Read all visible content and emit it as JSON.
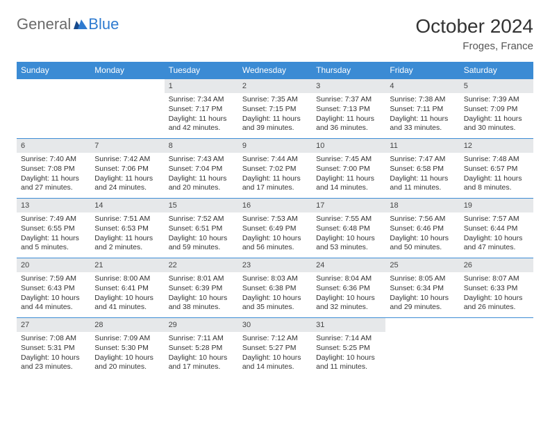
{
  "logo": {
    "text1": "General",
    "text2": "Blue"
  },
  "header": {
    "month": "October 2024",
    "location": "Froges, France"
  },
  "colors": {
    "header_row_bg": "#3b8bd4",
    "header_row_fg": "#ffffff",
    "daynum_bg": "#e6e8ea",
    "row_divider": "#3b8bd4",
    "logo_accent": "#2f7bd0"
  },
  "layout": {
    "cols": 7,
    "rows": 5,
    "first_weekday_col": 2
  },
  "weekdays": [
    "Sunday",
    "Monday",
    "Tuesday",
    "Wednesday",
    "Thursday",
    "Friday",
    "Saturday"
  ],
  "days": [
    {
      "n": 1,
      "sunrise": "7:34 AM",
      "sunset": "7:17 PM",
      "daylight": "11 hours and 42 minutes."
    },
    {
      "n": 2,
      "sunrise": "7:35 AM",
      "sunset": "7:15 PM",
      "daylight": "11 hours and 39 minutes."
    },
    {
      "n": 3,
      "sunrise": "7:37 AM",
      "sunset": "7:13 PM",
      "daylight": "11 hours and 36 minutes."
    },
    {
      "n": 4,
      "sunrise": "7:38 AM",
      "sunset": "7:11 PM",
      "daylight": "11 hours and 33 minutes."
    },
    {
      "n": 5,
      "sunrise": "7:39 AM",
      "sunset": "7:09 PM",
      "daylight": "11 hours and 30 minutes."
    },
    {
      "n": 6,
      "sunrise": "7:40 AM",
      "sunset": "7:08 PM",
      "daylight": "11 hours and 27 minutes."
    },
    {
      "n": 7,
      "sunrise": "7:42 AM",
      "sunset": "7:06 PM",
      "daylight": "11 hours and 24 minutes."
    },
    {
      "n": 8,
      "sunrise": "7:43 AM",
      "sunset": "7:04 PM",
      "daylight": "11 hours and 20 minutes."
    },
    {
      "n": 9,
      "sunrise": "7:44 AM",
      "sunset": "7:02 PM",
      "daylight": "11 hours and 17 minutes."
    },
    {
      "n": 10,
      "sunrise": "7:45 AM",
      "sunset": "7:00 PM",
      "daylight": "11 hours and 14 minutes."
    },
    {
      "n": 11,
      "sunrise": "7:47 AM",
      "sunset": "6:58 PM",
      "daylight": "11 hours and 11 minutes."
    },
    {
      "n": 12,
      "sunrise": "7:48 AM",
      "sunset": "6:57 PM",
      "daylight": "11 hours and 8 minutes."
    },
    {
      "n": 13,
      "sunrise": "7:49 AM",
      "sunset": "6:55 PM",
      "daylight": "11 hours and 5 minutes."
    },
    {
      "n": 14,
      "sunrise": "7:51 AM",
      "sunset": "6:53 PM",
      "daylight": "11 hours and 2 minutes."
    },
    {
      "n": 15,
      "sunrise": "7:52 AM",
      "sunset": "6:51 PM",
      "daylight": "10 hours and 59 minutes."
    },
    {
      "n": 16,
      "sunrise": "7:53 AM",
      "sunset": "6:49 PM",
      "daylight": "10 hours and 56 minutes."
    },
    {
      "n": 17,
      "sunrise": "7:55 AM",
      "sunset": "6:48 PM",
      "daylight": "10 hours and 53 minutes."
    },
    {
      "n": 18,
      "sunrise": "7:56 AM",
      "sunset": "6:46 PM",
      "daylight": "10 hours and 50 minutes."
    },
    {
      "n": 19,
      "sunrise": "7:57 AM",
      "sunset": "6:44 PM",
      "daylight": "10 hours and 47 minutes."
    },
    {
      "n": 20,
      "sunrise": "7:59 AM",
      "sunset": "6:43 PM",
      "daylight": "10 hours and 44 minutes."
    },
    {
      "n": 21,
      "sunrise": "8:00 AM",
      "sunset": "6:41 PM",
      "daylight": "10 hours and 41 minutes."
    },
    {
      "n": 22,
      "sunrise": "8:01 AM",
      "sunset": "6:39 PM",
      "daylight": "10 hours and 38 minutes."
    },
    {
      "n": 23,
      "sunrise": "8:03 AM",
      "sunset": "6:38 PM",
      "daylight": "10 hours and 35 minutes."
    },
    {
      "n": 24,
      "sunrise": "8:04 AM",
      "sunset": "6:36 PM",
      "daylight": "10 hours and 32 minutes."
    },
    {
      "n": 25,
      "sunrise": "8:05 AM",
      "sunset": "6:34 PM",
      "daylight": "10 hours and 29 minutes."
    },
    {
      "n": 26,
      "sunrise": "8:07 AM",
      "sunset": "6:33 PM",
      "daylight": "10 hours and 26 minutes."
    },
    {
      "n": 27,
      "sunrise": "7:08 AM",
      "sunset": "5:31 PM",
      "daylight": "10 hours and 23 minutes."
    },
    {
      "n": 28,
      "sunrise": "7:09 AM",
      "sunset": "5:30 PM",
      "daylight": "10 hours and 20 minutes."
    },
    {
      "n": 29,
      "sunrise": "7:11 AM",
      "sunset": "5:28 PM",
      "daylight": "10 hours and 17 minutes."
    },
    {
      "n": 30,
      "sunrise": "7:12 AM",
      "sunset": "5:27 PM",
      "daylight": "10 hours and 14 minutes."
    },
    {
      "n": 31,
      "sunrise": "7:14 AM",
      "sunset": "5:25 PM",
      "daylight": "10 hours and 11 minutes."
    }
  ],
  "labels": {
    "sunrise": "Sunrise:",
    "sunset": "Sunset:",
    "daylight": "Daylight:"
  }
}
